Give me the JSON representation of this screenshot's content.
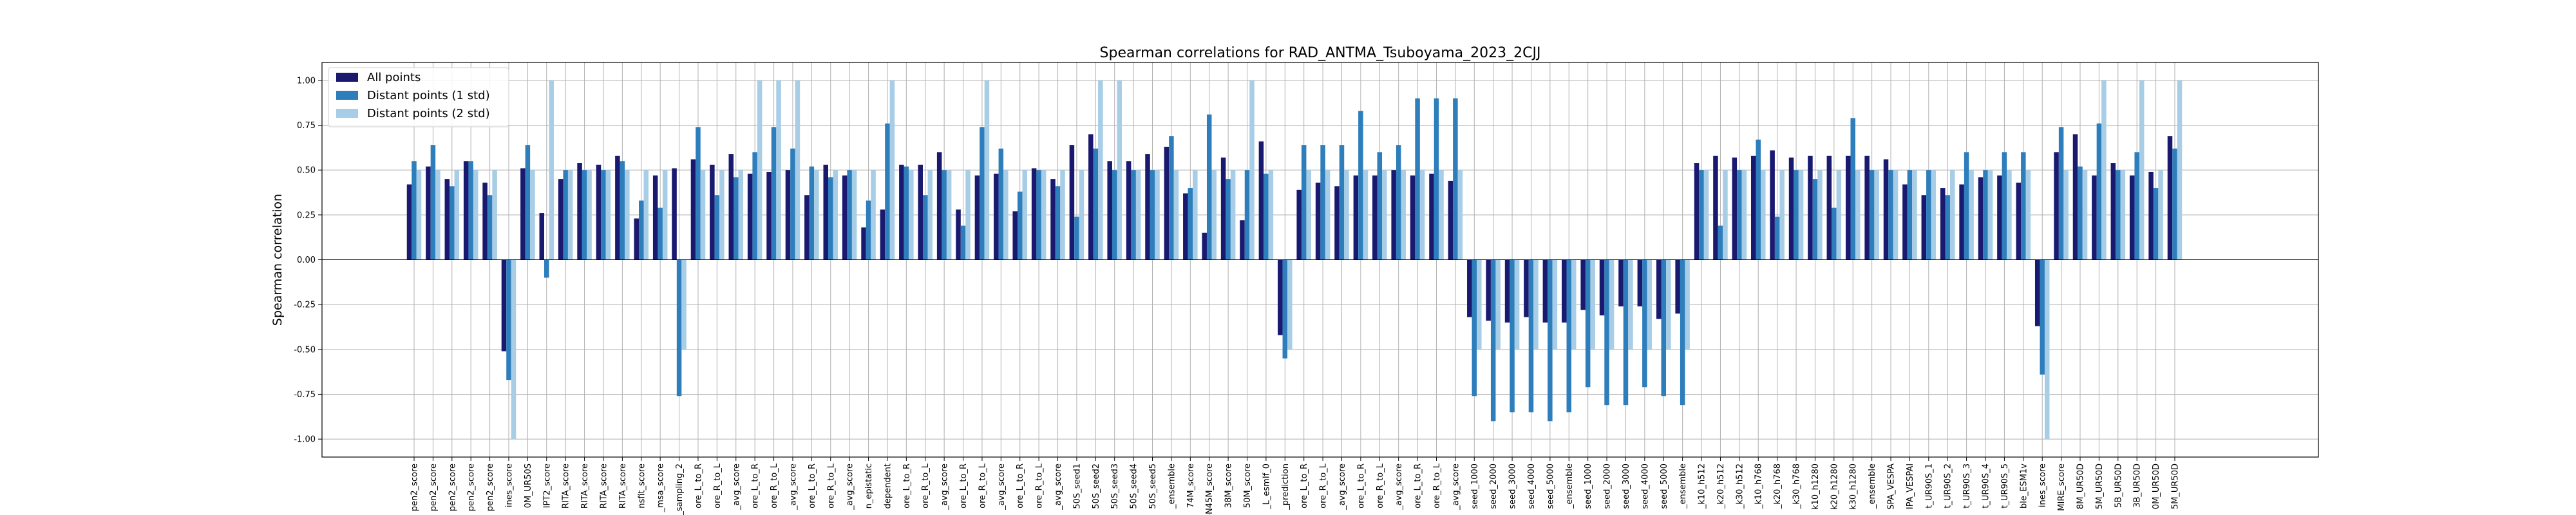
{
  "colors": {
    "all_points": "#191970",
    "distant_1std": "#2e7ebc",
    "distant_2std": "#a8cde6",
    "grid": "#b0b0b0",
    "frame": "#000000"
  },
  "chart_data": {
    "type": "bar",
    "title": "Spearman correlations for RAD_ANTMA_Tsuboyama_2023_2CJJ",
    "xlabel": "",
    "ylabel": "Spearman correlation",
    "ylim": [
      -1.1,
      1.1
    ],
    "yticks": [
      "-1.00",
      "-0.75",
      "-0.50",
      "-0.25",
      "0.00",
      "0.25",
      "0.50",
      "0.75",
      "1.00"
    ],
    "ytick_values": [
      -1.0,
      -0.75,
      -0.5,
      -0.25,
      0.0,
      0.25,
      0.5,
      0.75,
      1.0
    ],
    "grid": true,
    "legend_position": "top-left",
    "categories": [
      "pen2_score",
      "pen2_score",
      "pen2_score",
      "pen2_score",
      "pen2_score",
      "ines_score",
      "0M_UR50S",
      "IPT2_score",
      "RITA_score",
      "RITA_score",
      "RITA_score",
      "RITA_score",
      "nsfit_score",
      "_msa_score",
      "E_sampling_2",
      "ore_L_to_R",
      "ore_R_to_L",
      "_avg_score",
      "ore_L_to_R",
      "ore_R_to_L",
      "_avg_score",
      "ore_L_to_R",
      "ore_R_to_L",
      "_avg_score",
      "n_epistatic",
      "dependent",
      "ore_L_to_R",
      "ore_R_to_L",
      "_avg_score",
      "ore_L_to_R",
      "ore_R_to_L",
      "_avg_score",
      "ore_L_to_R",
      "ore_R_to_L",
      "_avg_score",
      "50S_seed1",
      "50S_seed2",
      "50S_seed3",
      "50S_seed4",
      "50S_seed5",
      "_ensemble",
      "74M_score",
      "-N45M_score",
      "38M_score",
      "50M_score",
      "_L_esmIf_0",
      "_prediction",
      "ore_L_to_R",
      "ore_R_to_L",
      "_avg_score",
      "ore_L_to_R",
      "ore_R_to_L",
      "_avg_score",
      "ore_L_to_R",
      "ore_R_to_L",
      "_avg_score",
      "seed_1000",
      "seed_2000",
      "seed_3000",
      "seed_4000",
      "seed_5000",
      "_ensemble",
      "seed_1000",
      "seed_2000",
      "seed_3000",
      "seed_4000",
      "seed_5000",
      "_ensemble",
      "_k10_h512",
      "_k20_h512",
      "_k30_h512",
      "_k10_h768",
      "_k20_h768",
      "_k30_h768",
      "k10_h1280",
      "k20_h1280",
      "k30_h1280",
      "_ensemble",
      "SPA_VESPA",
      "IPA_VESPAl",
      "t_UR90S_1",
      "t_UR90S_2",
      "t_UR90S_3",
      "t_UR90S_4",
      "t_UR90S_5",
      "ble_ESM1v",
      "ines_score",
      "MIRE_score",
      "8M_UR50D",
      "5M_UR50D",
      "5B_UR50D",
      "3B_UR50D",
      "0M_UR50D",
      "5M_UR50D"
    ],
    "series": [
      {
        "name": "All points",
        "values": [
          0.42,
          0.52,
          0.45,
          0.55,
          0.43,
          -0.51,
          0.51,
          0.26,
          0.45,
          0.54,
          0.53,
          0.58,
          0.23,
          0.47,
          0.51,
          0.56,
          0.53,
          0.59,
          0.48,
          0.49,
          0.5,
          0.36,
          0.53,
          0.47,
          0.18,
          0.28,
          0.53,
          0.53,
          0.6,
          0.28,
          0.47,
          0.48,
          0.27,
          0.51,
          0.45,
          0.64,
          0.7,
          0.55,
          0.55,
          0.59,
          0.63,
          0.37,
          0.15,
          0.57,
          0.22,
          0.66,
          -0.42,
          0.39,
          0.43,
          0.41,
          0.47,
          0.47,
          0.5,
          0.47,
          0.48,
          0.44,
          -0.32,
          -0.34,
          -0.35,
          -0.32,
          -0.35,
          -0.35,
          -0.28,
          -0.31,
          -0.26,
          -0.26,
          -0.33,
          -0.3,
          0.54,
          0.58,
          0.57,
          0.58,
          0.61,
          0.57,
          0.58,
          0.58,
          0.58,
          0.58,
          0.56,
          0.42,
          0.36,
          0.4,
          0.42,
          0.46,
          0.47,
          0.43,
          -0.37,
          0.6,
          0.7,
          0.47,
          0.54,
          0.47,
          0.49,
          0.69
        ]
      },
      {
        "name": "Distant points (1 std)",
        "values": [
          0.55,
          0.64,
          0.41,
          0.55,
          0.36,
          -0.67,
          0.64,
          -0.1,
          0.5,
          0.5,
          0.5,
          0.55,
          0.33,
          0.29,
          -0.76,
          0.74,
          0.36,
          0.46,
          0.6,
          0.74,
          0.62,
          0.52,
          0.46,
          0.5,
          0.33,
          0.76,
          0.52,
          0.36,
          0.5,
          0.19,
          0.74,
          0.62,
          0.38,
          0.5,
          0.41,
          0.24,
          0.62,
          0.5,
          0.5,
          0.5,
          0.69,
          0.4,
          0.81,
          0.45,
          0.5,
          0.48,
          -0.55,
          0.64,
          0.64,
          0.64,
          0.83,
          0.6,
          0.64,
          0.9,
          0.9,
          0.9,
          -0.76,
          -0.9,
          -0.85,
          -0.85,
          -0.9,
          -0.85,
          -0.71,
          -0.81,
          -0.81,
          -0.71,
          -0.76,
          -0.81,
          0.5,
          0.19,
          0.5,
          0.67,
          0.24,
          0.5,
          0.45,
          0.29,
          0.79,
          0.5,
          0.5,
          0.5,
          0.5,
          0.36,
          0.6,
          0.5,
          0.6,
          0.6,
          -0.64,
          0.74,
          0.52,
          0.76,
          0.5,
          0.6,
          0.4,
          0.62
        ]
      },
      {
        "name": "Distant points (2 std)",
        "values": [
          0.5,
          0.5,
          0.5,
          0.5,
          0.5,
          -1.0,
          0.5,
          1.0,
          0.5,
          0.5,
          0.5,
          0.5,
          0.5,
          0.5,
          -0.5,
          0.5,
          0.5,
          0.5,
          1.0,
          1.0,
          1.0,
          0.5,
          0.5,
          0.5,
          0.5,
          1.0,
          0.5,
          0.5,
          0.5,
          0.5,
          1.0,
          0.5,
          0.5,
          0.5,
          0.5,
          0.5,
          1.0,
          1.0,
          0.5,
          0.5,
          0.5,
          0.5,
          0.5,
          0.5,
          1.0,
          0.5,
          -0.5,
          0.5,
          0.5,
          0.5,
          0.5,
          0.5,
          0.5,
          0.5,
          0.5,
          0.5,
          -0.5,
          -0.5,
          -0.5,
          -0.5,
          -0.5,
          -0.5,
          -0.5,
          -0.5,
          -0.5,
          -0.5,
          -0.5,
          -0.5,
          0.5,
          0.5,
          0.5,
          0.5,
          0.5,
          0.5,
          0.5,
          0.5,
          0.5,
          0.5,
          0.5,
          0.5,
          0.5,
          0.5,
          0.5,
          0.5,
          0.5,
          0.5,
          -1.0,
          0.5,
          0.5,
          1.0,
          0.5,
          1.0,
          0.5,
          1.0
        ]
      }
    ]
  }
}
